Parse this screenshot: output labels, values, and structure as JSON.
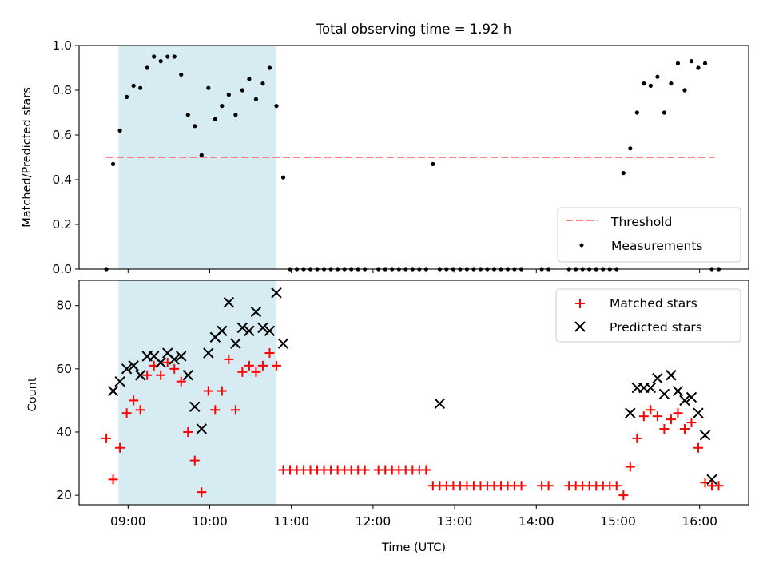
{
  "chart_data": [
    {
      "type": "scatter",
      "title": "Total observing time = 1.92 h",
      "xlabel": "",
      "ylabel": "Matched/Predicted stars",
      "xlim": [
        "08:24",
        "16:36"
      ],
      "ylim": [
        0,
        1.0
      ],
      "yticks": [
        "0.0",
        "0.2",
        "0.4",
        "0.6",
        "0.8",
        "1.0"
      ],
      "highlight_span": [
        "08:53",
        "10:49"
      ],
      "legend": {
        "placement": "lower-right",
        "entries": [
          {
            "label": "Threshold",
            "kind": "dashed-line",
            "color": "#ff7f7f"
          },
          {
            "label": "Measurements",
            "kind": "dot",
            "color": "#000000"
          }
        ]
      },
      "threshold": {
        "name": "Threshold",
        "value": 0.5,
        "x_range": [
          "08:44",
          "16:11"
        ]
      },
      "series": [
        {
          "name": "Measurements",
          "x": [
            "08:44",
            "08:49",
            "08:54",
            "08:59",
            "09:04",
            "09:09",
            "09:14",
            "09:19",
            "09:24",
            "09:29",
            "09:34",
            "09:39",
            "09:44",
            "09:49",
            "09:54",
            "09:59",
            "10:04",
            "10:09",
            "10:14",
            "10:19",
            "10:24",
            "10:29",
            "10:34",
            "10:39",
            "10:44",
            "10:49",
            "10:54",
            "10:59",
            "11:04",
            "11:09",
            "11:14",
            "11:19",
            "11:24",
            "11:29",
            "11:34",
            "11:39",
            "11:44",
            "11:49",
            "11:54",
            "12:04",
            "12:09",
            "12:14",
            "12:19",
            "12:24",
            "12:29",
            "12:34",
            "12:39",
            "12:44",
            "12:49",
            "12:54",
            "12:59",
            "13:04",
            "13:09",
            "13:14",
            "13:19",
            "13:24",
            "13:29",
            "13:34",
            "13:39",
            "13:44",
            "13:49",
            "14:04",
            "14:09",
            "14:24",
            "14:29",
            "14:34",
            "14:39",
            "14:44",
            "14:49",
            "14:54",
            "14:59",
            "15:04",
            "15:09",
            "15:14",
            "15:19",
            "15:24",
            "15:29",
            "15:34",
            "15:39",
            "15:44",
            "15:49",
            "15:54",
            "15:59",
            "16:04",
            "16:09",
            "16:14"
          ],
          "y": [
            0.0,
            0.47,
            0.62,
            0.77,
            0.82,
            0.81,
            0.9,
            0.95,
            0.93,
            0.95,
            0.95,
            0.87,
            0.69,
            0.64,
            0.51,
            0.81,
            0.67,
            0.73,
            0.78,
            0.69,
            0.8,
            0.85,
            0.76,
            0.83,
            0.9,
            0.73,
            0.41,
            0.0,
            0.0,
            0.0,
            0.0,
            0.0,
            0.0,
            0.0,
            0.0,
            0.0,
            0.0,
            0.0,
            0.0,
            0.0,
            0.0,
            0.0,
            0.0,
            0.0,
            0.0,
            0.0,
            0.0,
            0.47,
            0.0,
            0.0,
            0.0,
            0.0,
            0.0,
            0.0,
            0.0,
            0.0,
            0.0,
            0.0,
            0.0,
            0.0,
            0.0,
            0.0,
            0.0,
            0.0,
            0.0,
            0.0,
            0.0,
            0.0,
            0.0,
            0.0,
            0.0,
            0.43,
            0.54,
            0.7,
            0.83,
            0.82,
            0.86,
            0.7,
            0.83,
            0.92,
            0.8,
            0.93,
            0.9,
            0.92,
            0.0,
            0.0
          ]
        }
      ]
    },
    {
      "type": "scatter",
      "title": "",
      "xlabel": "Time (UTC)",
      "ylabel": "Count",
      "xlim": [
        "08:24",
        "16:36"
      ],
      "ylim": [
        17,
        88
      ],
      "yticks": [
        "20",
        "40",
        "60",
        "80"
      ],
      "xticks": [
        "09:00",
        "10:00",
        "11:00",
        "12:00",
        "13:00",
        "14:00",
        "15:00",
        "16:00"
      ],
      "highlight_span": [
        "08:53",
        "10:49"
      ],
      "legend": {
        "placement": "upper-right",
        "entries": [
          {
            "label": "Matched stars",
            "kind": "plus",
            "color": "#ff0000"
          },
          {
            "label": "Predicted stars",
            "kind": "cross",
            "color": "#000000"
          }
        ]
      },
      "series": [
        {
          "name": "Matched stars",
          "x": [
            "08:44",
            "08:49",
            "08:54",
            "08:59",
            "09:04",
            "09:09",
            "09:14",
            "09:19",
            "09:24",
            "09:29",
            "09:34",
            "09:39",
            "09:44",
            "09:49",
            "09:54",
            "09:59",
            "10:04",
            "10:09",
            "10:14",
            "10:19",
            "10:24",
            "10:29",
            "10:34",
            "10:39",
            "10:44",
            "10:49",
            "10:54",
            "10:59",
            "11:04",
            "11:09",
            "11:14",
            "11:19",
            "11:24",
            "11:29",
            "11:34",
            "11:39",
            "11:44",
            "11:49",
            "11:54",
            "12:04",
            "12:09",
            "12:14",
            "12:19",
            "12:24",
            "12:29",
            "12:34",
            "12:39",
            "12:44",
            "12:49",
            "12:54",
            "12:59",
            "13:04",
            "13:09",
            "13:14",
            "13:19",
            "13:24",
            "13:29",
            "13:34",
            "13:39",
            "13:44",
            "13:49",
            "14:04",
            "14:09",
            "14:24",
            "14:29",
            "14:34",
            "14:39",
            "14:44",
            "14:49",
            "14:54",
            "14:59",
            "15:04",
            "15:09",
            "15:14",
            "15:19",
            "15:24",
            "15:29",
            "15:34",
            "15:39",
            "15:44",
            "15:49",
            "15:54",
            "15:59",
            "16:04",
            "16:09",
            "16:14"
          ],
          "y": [
            38,
            25,
            35,
            46,
            50,
            47,
            58,
            61,
            58,
            62,
            60,
            56,
            40,
            31,
            21,
            53,
            47,
            53,
            63,
            47,
            59,
            61,
            59,
            61,
            65,
            61,
            28,
            28,
            28,
            28,
            28,
            28,
            28,
            28,
            28,
            28,
            28,
            28,
            28,
            28,
            28,
            28,
            28,
            28,
            28,
            28,
            28,
            23,
            23,
            23,
            23,
            23,
            23,
            23,
            23,
            23,
            23,
            23,
            23,
            23,
            23,
            23,
            23,
            23,
            23,
            23,
            23,
            23,
            23,
            23,
            23,
            20,
            29,
            38,
            45,
            47,
            45,
            41,
            44,
            46,
            41,
            43,
            35,
            24,
            23,
            23
          ]
        },
        {
          "name": "Predicted stars",
          "x": [
            "08:49",
            "08:54",
            "08:59",
            "09:04",
            "09:09",
            "09:14",
            "09:19",
            "09:24",
            "09:29",
            "09:34",
            "09:39",
            "09:44",
            "09:49",
            "09:54",
            "09:59",
            "10:04",
            "10:09",
            "10:14",
            "10:19",
            "10:24",
            "10:29",
            "10:34",
            "10:39",
            "10:44",
            "10:49",
            "10:54",
            "12:49",
            "15:09",
            "15:14",
            "15:19",
            "15:24",
            "15:29",
            "15:34",
            "15:39",
            "15:44",
            "15:49",
            "15:54",
            "15:59",
            "16:04",
            "16:09"
          ],
          "y": [
            53,
            56,
            60,
            61,
            58,
            64,
            64,
            62,
            65,
            63,
            64,
            58,
            48,
            41,
            65,
            70,
            72,
            81,
            68,
            73,
            72,
            78,
            73,
            72,
            84,
            68,
            49,
            46,
            54,
            54,
            54,
            57,
            52,
            58,
            53,
            50,
            51,
            46,
            39,
            25
          ]
        }
      ]
    }
  ]
}
